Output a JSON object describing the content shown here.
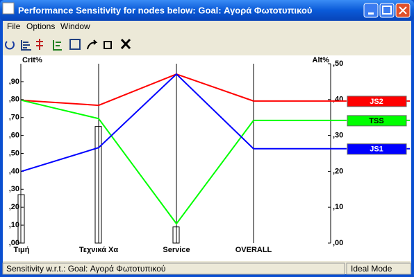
{
  "window": {
    "title": "Performance Sensitivity for nodes below: Goal: Αγορά Φωτοτυπικού"
  },
  "menu": [
    "File",
    "Options",
    "Window"
  ],
  "chart_data": {
    "type": "line",
    "y_label": "Crit%",
    "y2_label": "Alt%",
    "categories": [
      "Τιμή",
      "Τεχνικά Χα",
      "Service",
      "OVERALL"
    ],
    "bars": [
      0.27,
      0.65,
      0.09,
      null
    ],
    "ylim": [
      0,
      1.0
    ],
    "yticks": [
      {
        "value": 0,
        "label": ",00"
      },
      {
        "value": 0.1,
        "label": ",10"
      },
      {
        "value": 0.2,
        "label": ",20"
      },
      {
        "value": 0.3,
        "label": ",30"
      },
      {
        "value": 0.4,
        "label": ",40"
      },
      {
        "value": 0.5,
        "label": ",50"
      },
      {
        "value": 0.6,
        "label": ",60"
      },
      {
        "value": 0.7,
        "label": ",70"
      },
      {
        "value": 0.8,
        "label": ",80"
      },
      {
        "value": 0.9,
        "label": ",90"
      }
    ],
    "y2lim": [
      0,
      0.5
    ],
    "y2ticks": [
      {
        "value": 0,
        "label": ",00"
      },
      {
        "value": 0.1,
        "label": ",10"
      },
      {
        "value": 0.2,
        "label": ",20"
      },
      {
        "value": 0.3,
        "label": ",30"
      },
      {
        "value": 0.4,
        "label": ",40"
      },
      {
        "value": 0.5,
        "label": ",50"
      }
    ],
    "series": [
      {
        "name": "JS2",
        "color": "#ff0000",
        "axis": "y2",
        "values": [
          0.398,
          0.384,
          0.471,
          0.396
        ]
      },
      {
        "name": "TSS",
        "color": "#00ff00",
        "axis": "y2",
        "values": [
          0.398,
          0.347,
          0.054,
          0.342
        ]
      },
      {
        "name": "JS1",
        "color": "#0000ff",
        "axis": "y2",
        "values": [
          0.2,
          0.266,
          0.471,
          0.263
        ]
      }
    ]
  },
  "status": {
    "left": "Sensitivity w.r.t.: Goal: Αγορά Φωτοτυπικού",
    "right": "Ideal Mode"
  }
}
